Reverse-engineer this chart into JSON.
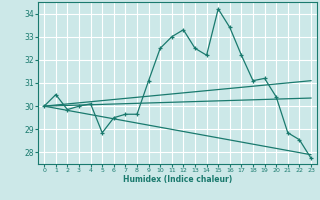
{
  "xlabel": "Humidex (Indice chaleur)",
  "bg_color": "#cce8e8",
  "grid_color": "#ffffff",
  "line_color": "#1a7a6e",
  "xlim": [
    -0.5,
    23.5
  ],
  "ylim": [
    27.5,
    34.5
  ],
  "xticks": [
    0,
    1,
    2,
    3,
    4,
    5,
    6,
    7,
    8,
    9,
    10,
    11,
    12,
    13,
    14,
    15,
    16,
    17,
    18,
    19,
    20,
    21,
    22,
    23
  ],
  "yticks": [
    28,
    29,
    30,
    31,
    32,
    33,
    34
  ],
  "series1_x": [
    0,
    1,
    2,
    3,
    4,
    5,
    6,
    7,
    8,
    9,
    10,
    11,
    12,
    13,
    14,
    15,
    16,
    17,
    18,
    19,
    20,
    21,
    22,
    23
  ],
  "series1_y": [
    30.0,
    30.5,
    29.85,
    30.0,
    30.1,
    28.85,
    29.5,
    29.65,
    29.65,
    31.1,
    32.5,
    33.0,
    33.3,
    32.5,
    32.2,
    34.2,
    33.4,
    32.2,
    31.1,
    31.2,
    30.4,
    28.85,
    28.55,
    27.75
  ],
  "series2_x": [
    0,
    23
  ],
  "series2_y": [
    30.0,
    31.1
  ],
  "series3_x": [
    0,
    23
  ],
  "series3_y": [
    30.0,
    30.35
  ],
  "series4_x": [
    0,
    23
  ],
  "series4_y": [
    30.0,
    27.9
  ]
}
